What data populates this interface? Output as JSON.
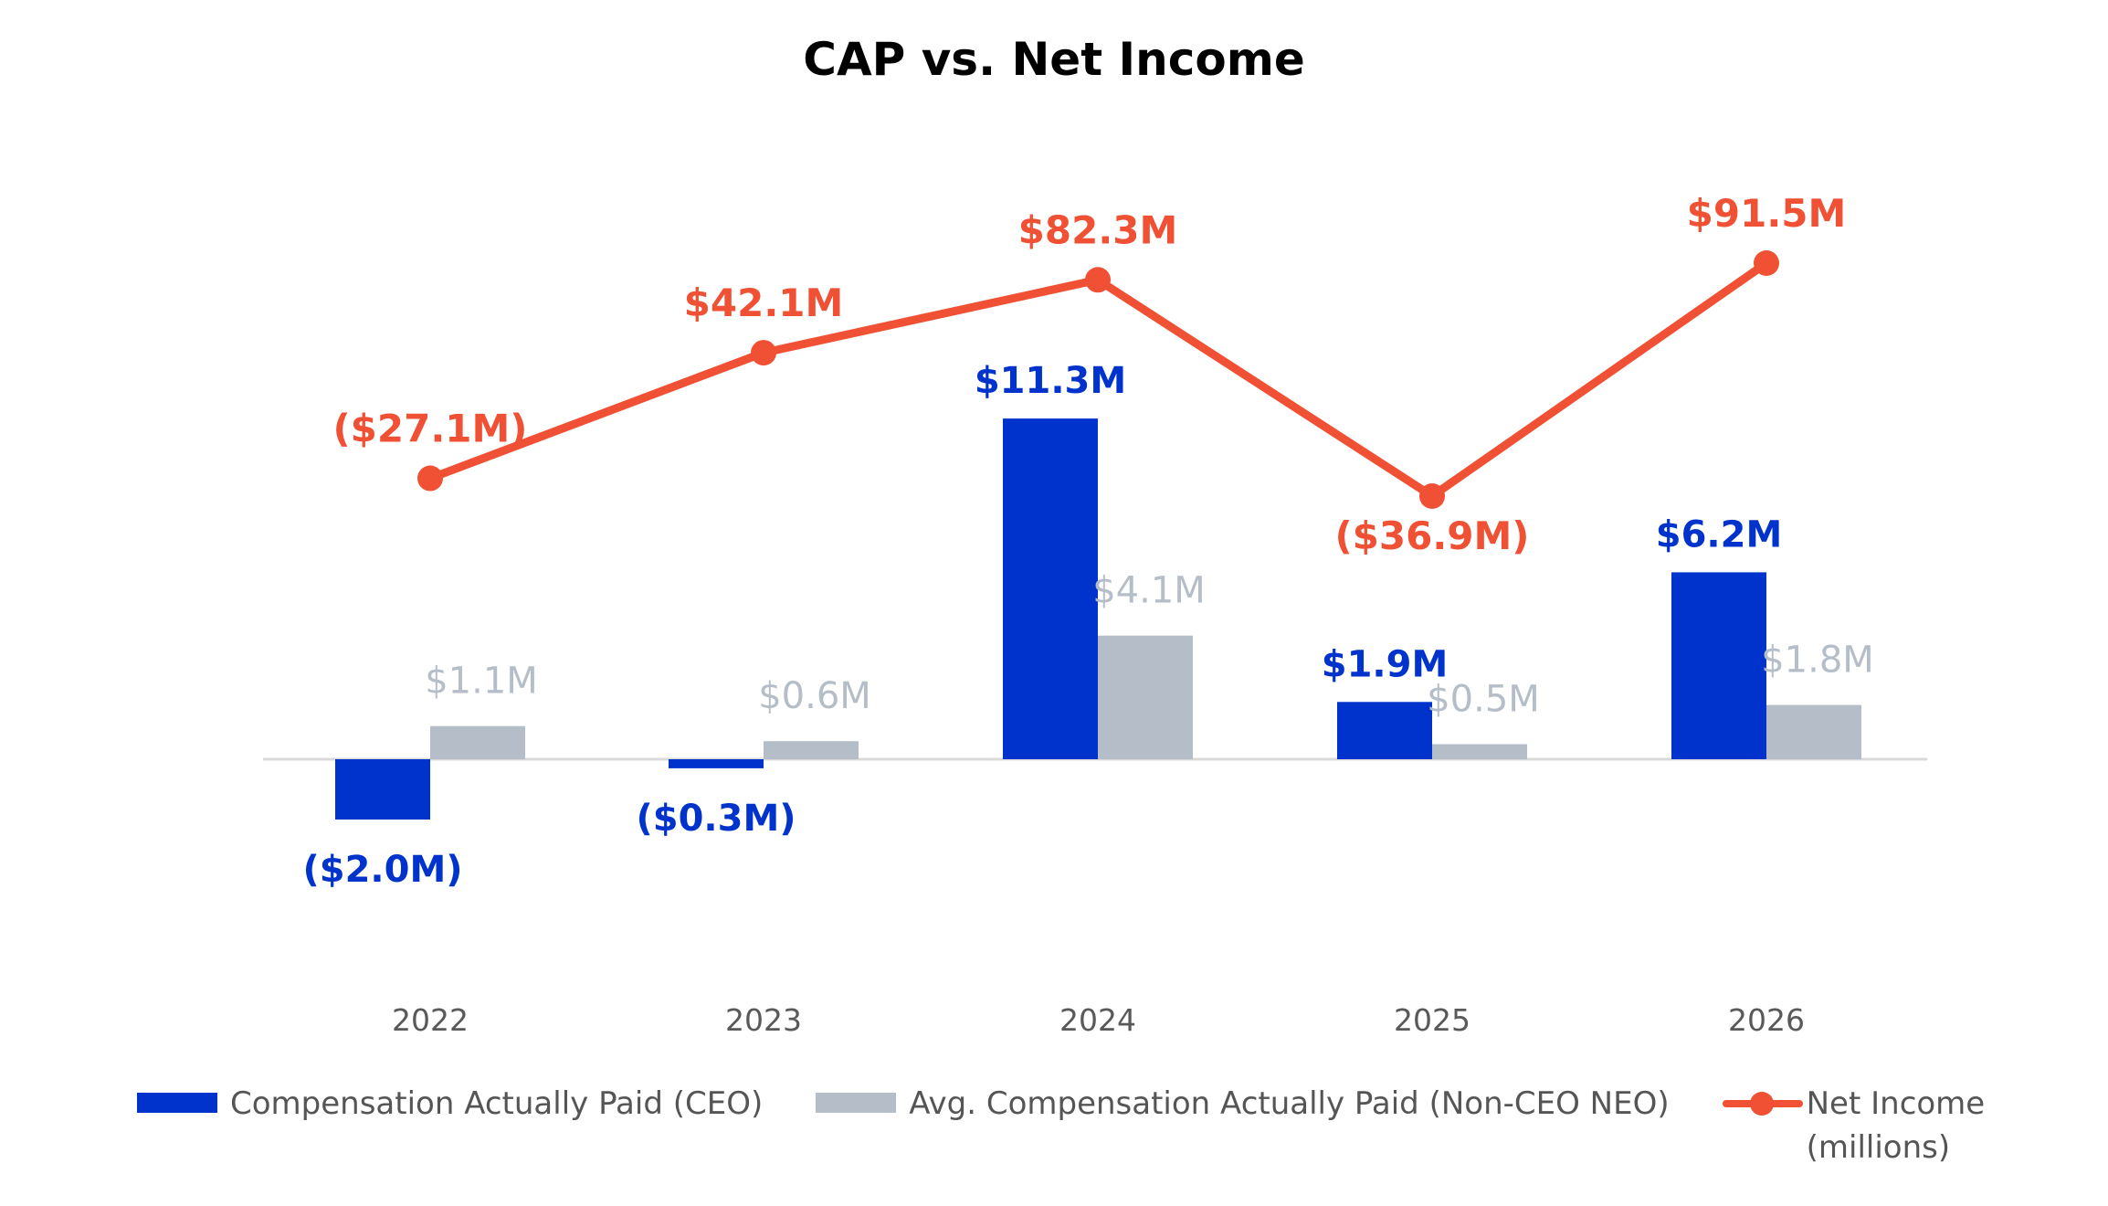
{
  "chart_data": {
    "type": "bar",
    "title": "CAP vs. Net Income",
    "categories": [
      "2022",
      "2023",
      "2024",
      "2025",
      "2026"
    ],
    "series": [
      {
        "name": "Compensation Actually Paid (CEO)",
        "type": "bar",
        "color": "#0033CC",
        "values": [
          -2.0,
          -0.3,
          11.3,
          1.9,
          6.2
        ],
        "labels": [
          "($2.0M)",
          "($0.3M)",
          "$11.3M",
          "$1.9M",
          "$6.2M"
        ]
      },
      {
        "name": "Avg. Compensation Actually Paid (Non-CEO NEO)",
        "type": "bar",
        "color": "#B5BEC8",
        "values": [
          1.1,
          0.6,
          4.1,
          0.5,
          1.8
        ],
        "labels": [
          "$1.1M",
          "$0.6M",
          "$4.1M",
          "$0.5M",
          "$1.8M"
        ]
      },
      {
        "name": "Net Income (millions)",
        "type": "line",
        "color": "#F05033",
        "values": [
          -27.1,
          42.1,
          82.3,
          -36.9,
          91.5
        ],
        "labels": [
          "($27.1M)",
          "$42.1M",
          "$82.3M",
          "($36.9M)",
          "$91.5M"
        ]
      }
    ],
    "legend_position": "bottom",
    "grid": false
  }
}
